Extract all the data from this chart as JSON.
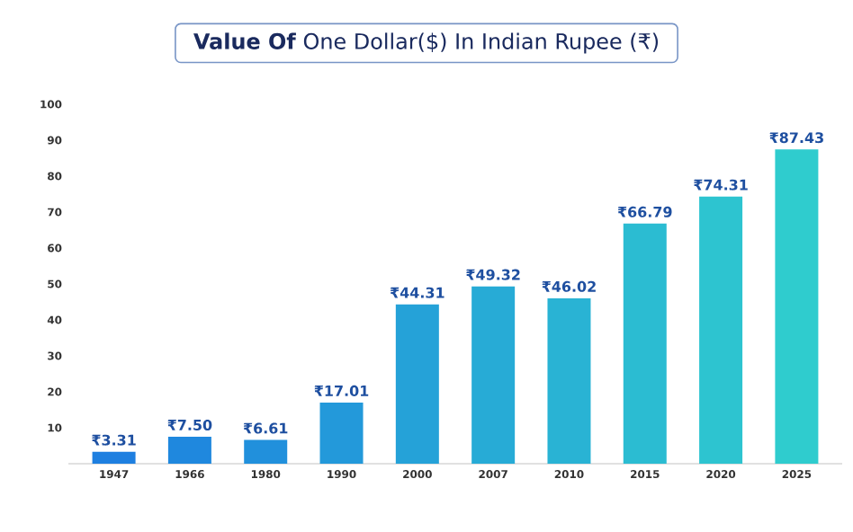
{
  "chart_data": {
    "type": "bar",
    "title": "**Value Of** One Dollar($) In Indian Rupee (₹)",
    "categories": [
      "1947",
      "1966",
      "1980",
      "1990",
      "2000",
      "2007",
      "2010",
      "2015",
      "2020",
      "2025"
    ],
    "values": [
      3.31,
      7.5,
      6.61,
      17.01,
      44.31,
      49.32,
      46.02,
      66.79,
      74.31,
      87.43
    ],
    "value_labels": [
      "₹3.31",
      "₹7.50",
      "₹6.61",
      "₹17.01",
      "₹44.31",
      "₹49.32",
      "₹46.02",
      "₹66.79",
      "₹74.31",
      "₹87.43"
    ],
    "colors": [
      "#1e7fe0",
      "#1f88de",
      "#2190dc",
      "#2399da",
      "#25a2d8",
      "#27abd6",
      "#29b3d4",
      "#2bbcd2",
      "#2dc4d0",
      "#2fccce"
    ],
    "ylim": [
      0,
      100
    ],
    "yticks": [
      10,
      20,
      30,
      40,
      50,
      60,
      70,
      80,
      90,
      100
    ]
  }
}
